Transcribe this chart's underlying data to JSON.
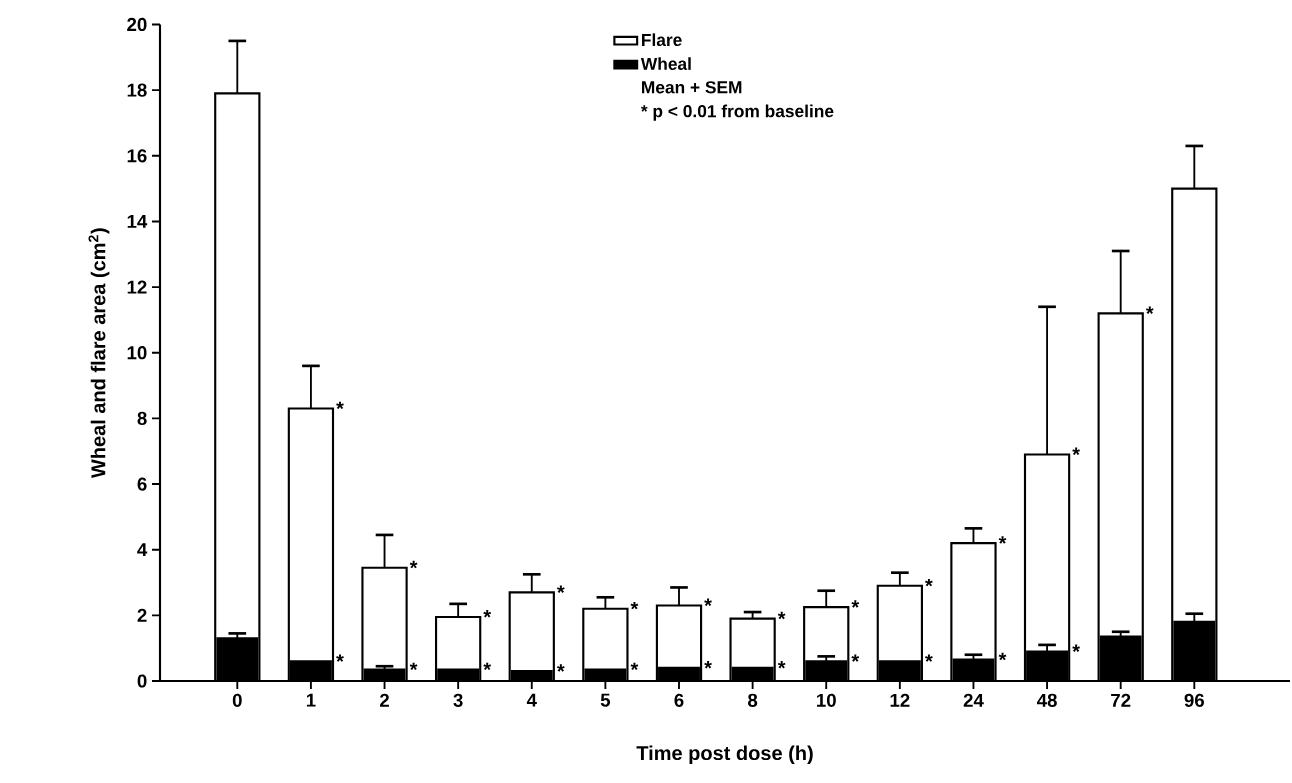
{
  "chart_data": {
    "type": "bar",
    "xlabel": "Time post dose (h)",
    "ylabel": "Wheal and flare area (cm$^{2}$)",
    "categories": [
      "0",
      "1",
      "2",
      "3",
      "4",
      "5",
      "6",
      "8",
      "10",
      "12",
      "24",
      "48",
      "72",
      "96"
    ],
    "series": [
      {
        "name": "Flare",
        "color": "#ffffff",
        "values": [
          17.9,
          8.3,
          3.45,
          1.95,
          2.7,
          2.2,
          2.3,
          1.9,
          2.25,
          2.9,
          4.2,
          6.9,
          11.2,
          15.0
        ],
        "errors": [
          [
            17.9,
            19.5
          ],
          [
            8.3,
            9.6
          ],
          [
            3.45,
            4.45
          ],
          [
            1.95,
            2.35
          ],
          [
            2.7,
            3.25
          ],
          [
            2.2,
            2.55
          ],
          [
            2.3,
            2.85
          ],
          [
            1.9,
            2.1
          ],
          [
            2.25,
            2.75
          ],
          [
            2.9,
            3.3
          ],
          [
            4.2,
            4.65
          ],
          [
            6.9,
            11.4
          ],
          [
            11.2,
            13.1
          ],
          [
            15.0,
            16.3
          ]
        ]
      },
      {
        "name": "Wheal",
        "color": "#000000",
        "values": [
          1.3,
          0.6,
          0.35,
          0.35,
          0.3,
          0.35,
          0.4,
          0.4,
          0.6,
          0.6,
          0.65,
          0.9,
          1.35,
          1.8
        ],
        "errors": [
          [
            1.3,
            1.45
          ],
          null,
          [
            0.35,
            0.45
          ],
          null,
          null,
          null,
          null,
          null,
          [
            0.6,
            0.75
          ],
          null,
          [
            0.65,
            0.8
          ],
          [
            0.9,
            1.1
          ],
          [
            1.35,
            1.5
          ],
          [
            1.8,
            2.05
          ]
        ]
      }
    ],
    "ylim": [
      0,
      20
    ],
    "yticks": [
      0,
      2,
      4,
      6,
      8,
      10,
      12,
      14,
      16,
      18,
      20
    ],
    "legend": "top",
    "annotations": [
      "Mean + SEM",
      "* p < 0.01 from baseline",
      {
        "text": "*",
        "x": "1",
        "y": 8.3
      },
      {
        "text": "*",
        "x": "2",
        "y": 3.45
      },
      {
        "text": "*",
        "x": "3",
        "y": 1.95
      },
      {
        "text": "*",
        "x": "4",
        "y": 2.7
      },
      {
        "text": "*",
        "x": "5",
        "y": 2.2
      },
      {
        "text": "*",
        "x": "6",
        "y": 2.3
      },
      {
        "text": "*",
        "x": "8",
        "y": 1.9
      },
      {
        "text": "*",
        "x": "10",
        "y": 2.25
      },
      {
        "text": "*",
        "x": "12",
        "y": 2.9
      },
      {
        "text": "*",
        "x": "24",
        "y": 4.2
      },
      {
        "text": "*",
        "x": "48",
        "y": 6.9
      },
      {
        "text": "*",
        "x": "72",
        "y": 11.2
      },
      {
        "text": "*",
        "x": "1",
        "y": 0.6
      },
      {
        "text": "*",
        "x": "2",
        "y": 0.35
      },
      {
        "text": "*",
        "x": "3",
        "y": 0.35
      },
      {
        "text": "*",
        "x": "4",
        "y": 0.3
      },
      {
        "text": "*",
        "x": "5",
        "y": 0.35
      },
      {
        "text": "*",
        "x": "6",
        "y": 0.4
      },
      {
        "text": "*",
        "x": "8",
        "y": 0.4
      },
      {
        "text": "*",
        "x": "10",
        "y": 0.6
      },
      {
        "text": "*",
        "x": "12",
        "y": 0.6
      },
      {
        "text": "*",
        "x": "24",
        "y": 0.65
      },
      {
        "text": "*",
        "x": "48",
        "y": 0.9
      }
    ]
  }
}
